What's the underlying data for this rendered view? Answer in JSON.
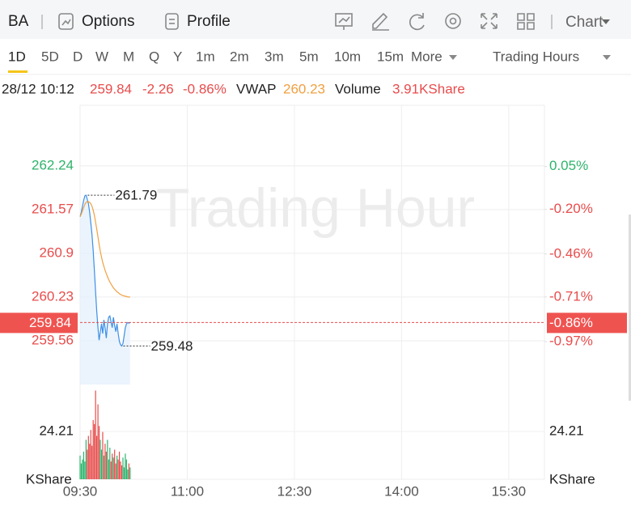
{
  "toolbar": {
    "symbol": "BA",
    "options": "Options",
    "profile": "Profile",
    "chart": "Chart"
  },
  "periods": {
    "items": [
      "1D",
      "5D",
      "D",
      "W",
      "M",
      "Q",
      "Y",
      "1m",
      "2m",
      "3m",
      "5m",
      "10m",
      "15m",
      "More"
    ],
    "session": "Trading Hours"
  },
  "quote": {
    "time": "28/12 10:12",
    "price": 259.84,
    "change": -2.26,
    "change_pct": "-0.86%",
    "vwap": 260.23,
    "volume_label": "Volume",
    "volume": "3.91KShare"
  },
  "chart_data": {
    "type": "line",
    "watermark": "Trading Hour",
    "x": [
      "09:30",
      "09:31",
      "09:32",
      "09:33",
      "09:34",
      "09:35",
      "09:36",
      "09:37",
      "09:38",
      "09:39",
      "09:40",
      "09:41",
      "09:42",
      "09:43",
      "09:44",
      "09:45",
      "09:46",
      "09:47",
      "09:48",
      "09:49",
      "09:50",
      "09:51",
      "09:52",
      "09:53",
      "09:54",
      "09:55",
      "09:56",
      "09:57",
      "09:58",
      "09:59",
      "10:00",
      "10:01",
      "10:02",
      "10:03",
      "10:04",
      "10:05",
      "10:06",
      "10:07",
      "10:08",
      "10:09",
      "10:10",
      "10:11",
      "10:12"
    ],
    "xlim": [
      "09:30",
      "16:00"
    ],
    "xticks": [
      "09:30",
      "11:00",
      "12:30",
      "14:00",
      "15:30"
    ],
    "ylim": [
      258.89,
      263.23
    ],
    "yticks": [
      262.24,
      261.57,
      260.9,
      260.23,
      259.56
    ],
    "y2lim": [
      -1.22,
      0.43
    ],
    "y2ticks": [
      {
        "value": 0.05,
        "label": "0.05%"
      },
      {
        "value": -0.2,
        "label": "-0.20%"
      },
      {
        "value": -0.46,
        "label": "-0.46%"
      },
      {
        "value": -0.71,
        "label": "-0.71%"
      },
      {
        "value": -0.97,
        "label": "-0.97%"
      }
    ],
    "series": [
      {
        "color": "#3d8fe6",
        "values": [
          261.46,
          261.53,
          261.62,
          261.71,
          261.78,
          261.79,
          261.73,
          261.66,
          261.53,
          261.37,
          261.19,
          260.94,
          260.63,
          260.32,
          260.01,
          259.76,
          259.57,
          259.7,
          259.82,
          259.67,
          259.88,
          259.76,
          259.6,
          259.82,
          259.92,
          259.94,
          259.85,
          259.76,
          259.92,
          259.79,
          259.7,
          259.82,
          259.67,
          259.55,
          259.5,
          259.48,
          259.52,
          259.64,
          259.76,
          259.82,
          259.84,
          259.83,
          259.84
        ]
      },
      {
        "name": "VWAP",
        "color": "#f0a040",
        "values": [
          261.46,
          261.5,
          261.55,
          261.6,
          261.65,
          261.68,
          261.69,
          261.69,
          261.68,
          261.66,
          261.62,
          261.56,
          261.48,
          261.38,
          261.27,
          261.15,
          261.04,
          260.93,
          260.84,
          260.76,
          260.7,
          260.64,
          260.59,
          260.54,
          260.5,
          260.46,
          260.43,
          260.4,
          260.37,
          260.35,
          260.33,
          260.31,
          260.3,
          260.28,
          260.27,
          260.26,
          260.25,
          260.25,
          260.24,
          260.24,
          260.23,
          260.23,
          260.23
        ]
      }
    ],
    "high": 261.79,
    "low": 259.48,
    "up_color": "#2db36b",
    "down_color": "#e84c4c",
    "volume": {
      "values": [
        12,
        8,
        10,
        14,
        9,
        20,
        15,
        22,
        18,
        25,
        17,
        30,
        28,
        45,
        22,
        38,
        27,
        20,
        15,
        24,
        12,
        18,
        14,
        20,
        10,
        16,
        9,
        13,
        11,
        15,
        8,
        12,
        10,
        14,
        9,
        7,
        11,
        6,
        13,
        10,
        5,
        8,
        6
      ],
      "ylim": [
        0,
        46
      ],
      "yticks": [
        24.21
      ],
      "unit": "KShare"
    }
  }
}
